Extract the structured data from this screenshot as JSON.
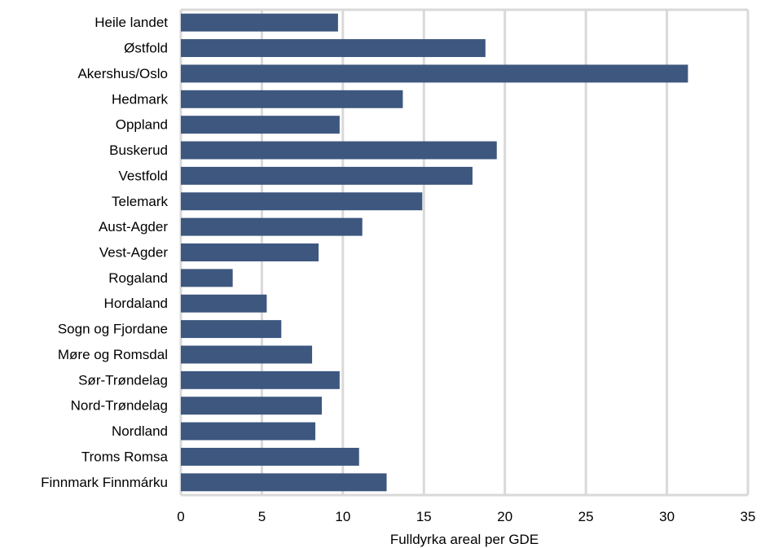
{
  "chart_data": {
    "type": "bar",
    "orientation": "horizontal",
    "categories": [
      "Heile landet",
      "Østfold",
      "Akershus/Oslo",
      "Hedmark",
      "Oppland",
      "Buskerud",
      "Vestfold",
      "Telemark",
      "Aust-Agder",
      "Vest-Agder",
      "Rogaland",
      "Hordaland",
      "Sogn og Fjordane",
      "Møre og Romsdal",
      "Sør-Trøndelag",
      "Nord-Trøndelag",
      "Nordland",
      "Troms Romsa",
      "Finnmark Finnmárku"
    ],
    "values": [
      9.7,
      18.8,
      31.3,
      13.7,
      9.8,
      19.5,
      18.0,
      14.9,
      11.2,
      8.5,
      3.2,
      5.3,
      6.2,
      8.1,
      9.8,
      8.7,
      8.3,
      11.0,
      12.7
    ],
    "title": "",
    "xlabel": "Fulldyrka areal per GDE",
    "ylabel": "",
    "xlim": [
      0,
      35
    ],
    "xticks": [
      0,
      5,
      10,
      15,
      20,
      25,
      30,
      35
    ],
    "grid": true,
    "legend": "none",
    "colors": {
      "bar": "#3d577f",
      "grid": "#d9d9d9",
      "background": "#ffffff"
    }
  }
}
